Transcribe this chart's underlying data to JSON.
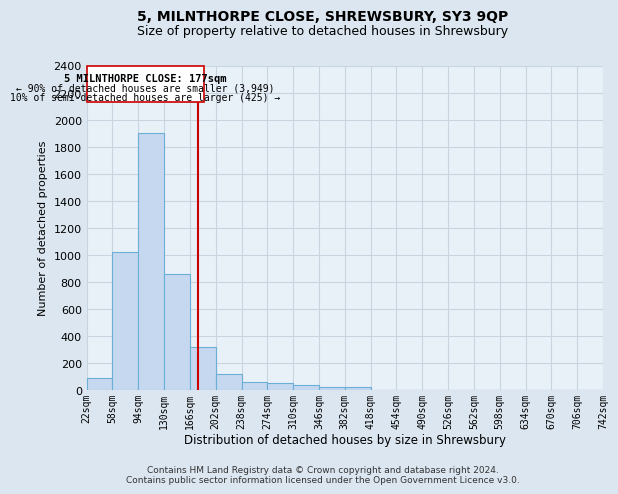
{
  "title": "5, MILNTHORPE CLOSE, SHREWSBURY, SY3 9QP",
  "subtitle": "Size of property relative to detached houses in Shrewsbury",
  "xlabel": "Distribution of detached houses by size in Shrewsbury",
  "ylabel": "Number of detached properties",
  "footer_line1": "Contains HM Land Registry data © Crown copyright and database right 2024.",
  "footer_line2": "Contains public sector information licensed under the Open Government Licence v3.0.",
  "annotation_line1": "5 MILNTHORPE CLOSE: 177sqm",
  "annotation_line2": "← 90% of detached houses are smaller (3,949)",
  "annotation_line3": "10% of semi-detached houses are larger (425) →",
  "bin_edges": [
    22,
    58,
    94,
    130,
    166,
    202,
    238,
    274,
    310,
    346,
    382,
    418,
    454,
    490,
    526,
    562,
    598,
    634,
    670,
    706,
    742
  ],
  "bar_heights": [
    90,
    1020,
    1900,
    860,
    320,
    115,
    60,
    50,
    35,
    25,
    20,
    0,
    0,
    0,
    0,
    0,
    0,
    0,
    0,
    0
  ],
  "bin_labels": [
    "22sqm",
    "58sqm",
    "94sqm",
    "130sqm",
    "166sqm",
    "202sqm",
    "238sqm",
    "274sqm",
    "310sqm",
    "346sqm",
    "382sqm",
    "418sqm",
    "454sqm",
    "490sqm",
    "526sqm",
    "562sqm",
    "598sqm",
    "634sqm",
    "670sqm",
    "706sqm",
    "742sqm"
  ],
  "bar_color": "#c5d8f0",
  "bar_edge_color": "#6baed6",
  "red_line_x": 177,
  "ylim": [
    0,
    2400
  ],
  "yticks": [
    0,
    200,
    400,
    600,
    800,
    1000,
    1200,
    1400,
    1600,
    1800,
    2000,
    2200,
    2400
  ],
  "bg_color": "#dce6f0",
  "plot_bg_color": "#e8f0f8",
  "grid_color": "#c8d4e0",
  "title_fontsize": 10,
  "subtitle_fontsize": 9
}
